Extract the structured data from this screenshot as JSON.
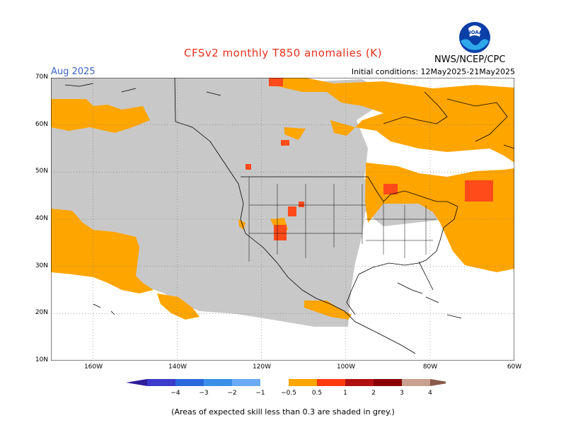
{
  "title": "CFSv2 monthly T850 anomalies (K)",
  "period": "Aug 2025",
  "initial_conditions": "Initial conditions: 12May2025-21May2025",
  "agency": "NWS/NCEP/CPC",
  "logo_text": "NOAA",
  "caption": "(Areas of expected skill less than 0.3 are shaded in grey.)",
  "map": {
    "lat_labels": [
      "70N",
      "60N",
      "50N",
      "40N",
      "30N",
      "20N",
      "10N"
    ],
    "lon_labels": [
      "160W",
      "140W",
      "120W",
      "100W",
      "80W",
      "60W"
    ],
    "colors": {
      "low_skill": "#c8c8c8",
      "warm_0_5_1": "#ffa500",
      "warm_1_2": "#ff4a1a",
      "warm_2_3": "#a40000",
      "warm_3_4": "#c8a090",
      "warm_4plus": "#8a5a4a",
      "cold_1": "#6aa8f0",
      "cold_2": "#3a8ae8",
      "cold_3": "#2a5ad8",
      "cold_4": "#3a28b8"
    }
  },
  "legend": {
    "tick_labels": [
      "−4",
      "−3",
      "−2",
      "−1",
      "−0.5",
      "0.5",
      "1",
      "2",
      "3",
      "4"
    ],
    "colors": [
      "#2e1c9a",
      "#3a3acb",
      "#2a66dc",
      "#3a8ee8",
      "#6aaaf5",
      "#ffffff",
      "#ffa500",
      "#ff3a10",
      "#b01010",
      "#8a0000",
      "#c8a090",
      "#8a5a4a"
    ]
  }
}
